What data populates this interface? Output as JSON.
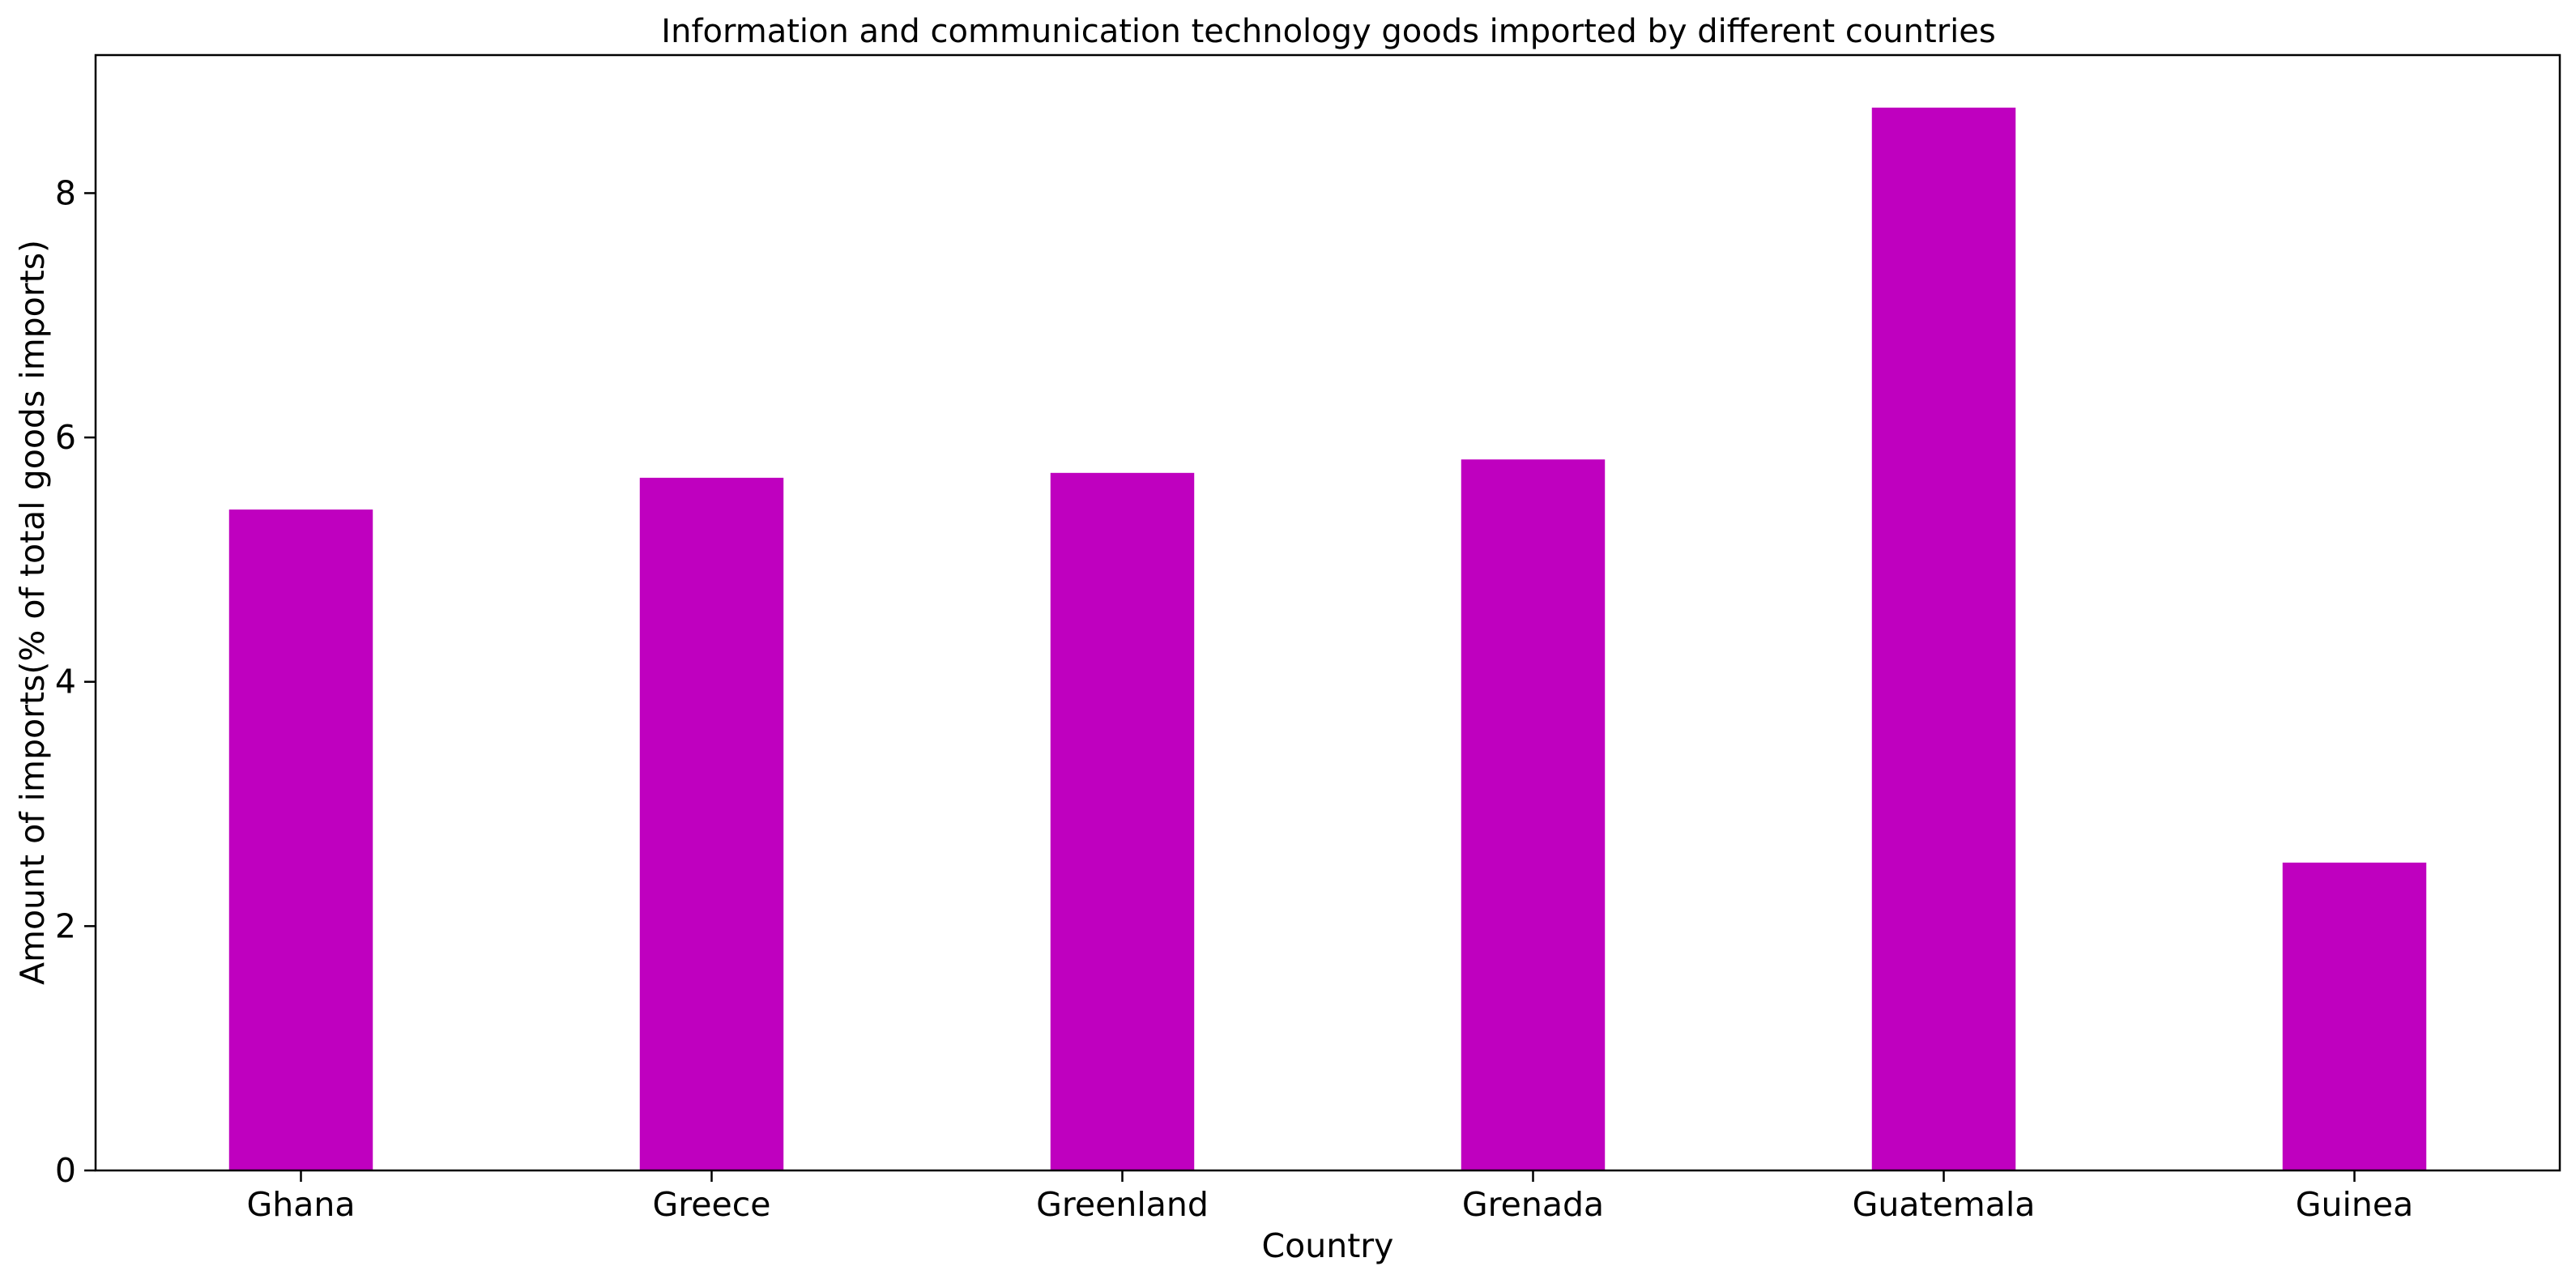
{
  "chart_data": {
    "type": "bar",
    "title": "Information and communication technology goods imported by different countries",
    "xlabel": "Country",
    "ylabel": "Amount of imports(% of total goods imports)",
    "categories": [
      "Ghana",
      "Greece",
      "Greenland",
      "Grenada",
      "Guatemala",
      "Guinea"
    ],
    "values": [
      5.41,
      5.67,
      5.71,
      5.82,
      8.7,
      2.52
    ],
    "ylim": [
      0,
      9.13
    ],
    "yticks": [
      0,
      2,
      4,
      6,
      8
    ],
    "grid": false,
    "legend": "none",
    "bar_color": "#bf00bf"
  }
}
